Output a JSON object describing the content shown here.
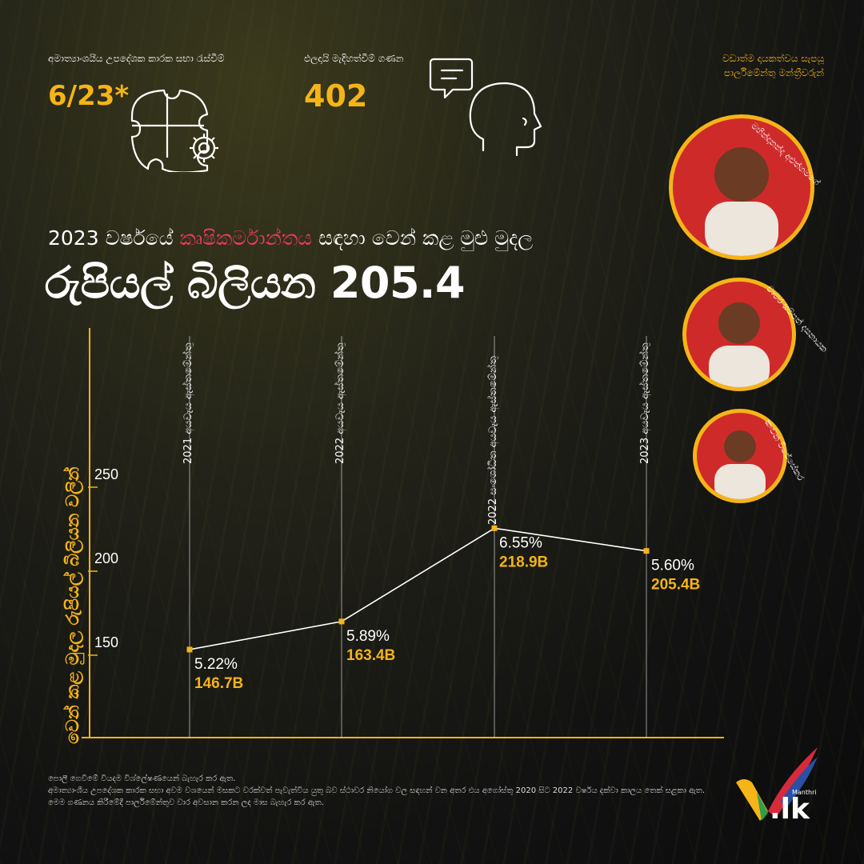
{
  "stats": {
    "consultative": {
      "label": "අමාත්‍යාංශයීය උපදේශක කාරක සභා රැස්වීම්",
      "value": "6/23*"
    },
    "interventions": {
      "label": "ඵලදායි මැදිහත්වීම් ගණන",
      "value": "402"
    }
  },
  "mps": {
    "heading": "වඩාත්ම දායකත්වය සැපයූ පාර්ලිමේන්තු මන්ත්‍රීවරුන්",
    "list": [
      {
        "name": "මහින්දානන්ද අළුත්ගමගේ"
      },
      {
        "name": "චාමර සම්පත් දසනායක"
      },
      {
        "name": "කංචන විජේසේකර"
      }
    ]
  },
  "headline": {
    "prefix": "2023 වර්ෂයේ ",
    "accent": "කෘෂිකර්මාන්තය",
    "suffix": " සඳහා වෙන් කළ මුළු මුදල"
  },
  "big_title": "රුපියල් බිලියන 205.4",
  "chart_data": {
    "type": "line",
    "ylabel": "වෙන් කළ මුදල රුපියල් බිලියන වලින්",
    "yticks": [
      150,
      200,
      250
    ],
    "ylim": [
      100,
      300
    ],
    "grid": false,
    "categories": [
      "2021 අයවැය ඇස්තමේන්තු",
      "2022 අයවැය ඇස්තමේන්තු",
      "2022 සංශෝධිත අයවැය ඇස්තමේන්තු",
      "2023 අයවැය ඇස්තමේන්තු"
    ],
    "series": [
      {
        "values": [
          146.7,
          163.4,
          218.9,
          205.4
        ],
        "percent_labels": [
          "5.22%",
          "5.89%",
          "6.55%",
          "5.60%"
        ],
        "value_labels": [
          "146.7B",
          "163.4B",
          "218.9B",
          "205.4B"
        ]
      }
    ],
    "colors": {
      "accent": "#f5b417",
      "line": "#ffffff"
    }
  },
  "footnotes": {
    "line1": "පොලී ගෙවීමේ වියදම විශ්ලේෂණයෙන් බැහැර කර ඇත.",
    "line2": "අමාත්‍යාංශීය උපදේශක කාරක සභා අවම වශයෙන් මසකට වරක්වත් පැවැත්විය යුතු බව ස්ථාවර නියෝග වල සඳහන් වන අතර එය අගෝස්තු 2020 සිට 2022 වර්ෂය දක්වා කාලය තෙක් සළකා ඇත. මෙම ගණනය කිරීමේදී පාර්ලිමේන්තුව වාර අවසාන කරන ලද මාස බැහැර කර ඇත."
  },
  "logo": {
    "name": "Manthri",
    "domain": ".lk"
  }
}
